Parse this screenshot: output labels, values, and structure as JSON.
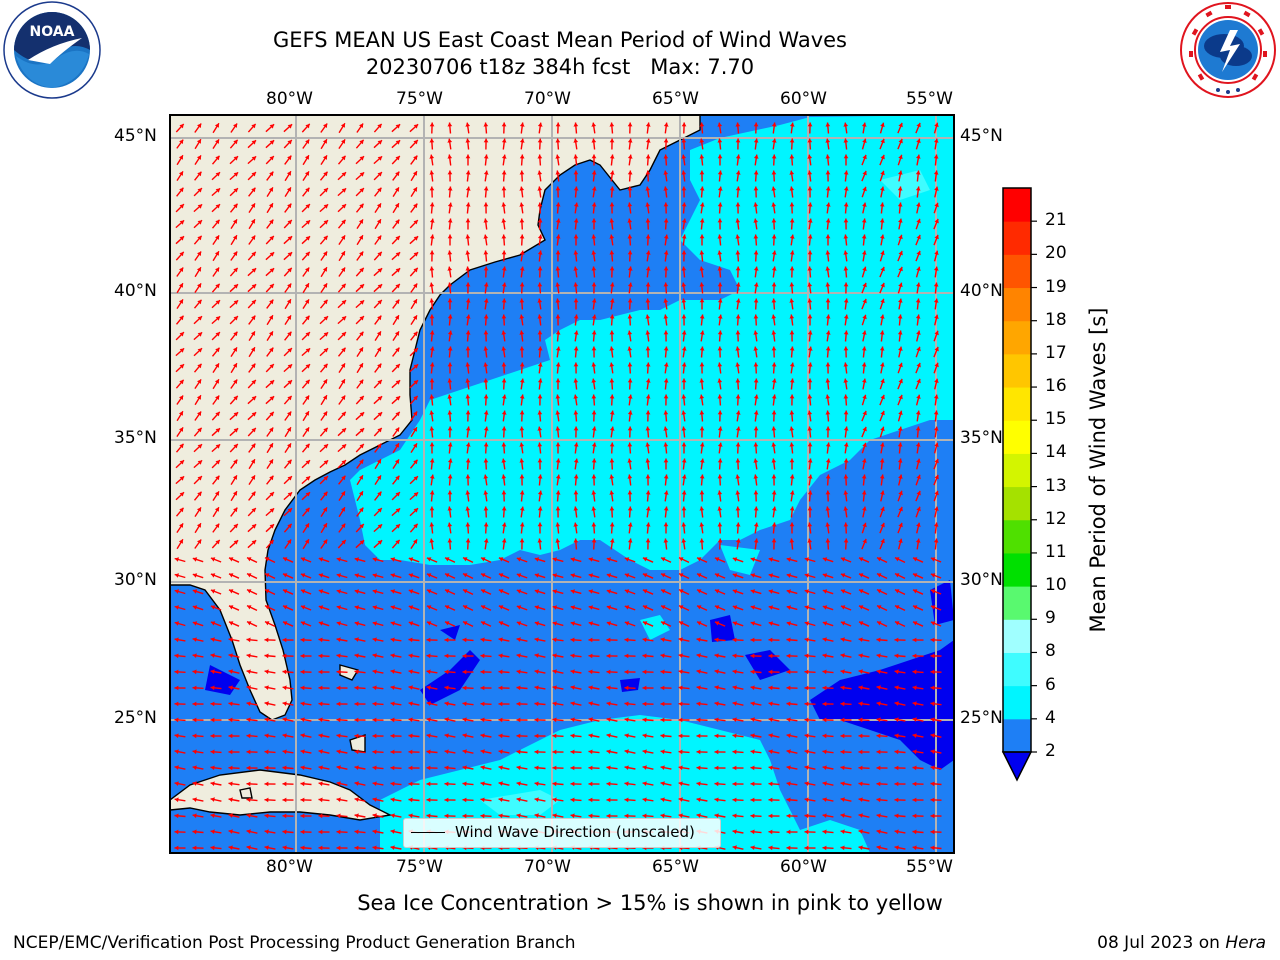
{
  "title": {
    "line1": "GEFS MEAN US East Coast Mean Period of Wind Waves",
    "line2": "20230706 t18z 384h fcst   Max: 7.70"
  },
  "logos": {
    "left": {
      "name": "NOAA",
      "text": "NOAA"
    },
    "right": {
      "name": "National Weather Service"
    }
  },
  "map": {
    "lon_labels": [
      "80°W",
      "75°W",
      "70°W",
      "65°W",
      "60°W",
      "55°W"
    ],
    "lat_labels": [
      "45°N",
      "40°N",
      "35°N",
      "30°N",
      "25°N"
    ],
    "legend_label": "Wind Wave Direction (unscaled)",
    "colors": {
      "land": "#efedde",
      "ocean_low": "#1e7ff5",
      "ocean_mid": "#00f5ff",
      "ocean_dark": "#0000ef",
      "arrow": "#ff0000",
      "grid": "#b3b3b3"
    }
  },
  "colorbar": {
    "ticks": [
      "2",
      "4",
      "6",
      "8",
      "9",
      "10",
      "11",
      "12",
      "13",
      "14",
      "15",
      "16",
      "17",
      "18",
      "19",
      "20",
      "21"
    ],
    "colors": [
      "#1e7ff5",
      "#00f5ff",
      "#3ffcff",
      "#a0ffff",
      "#59f96f",
      "#00e000",
      "#4fe000",
      "#a5e100",
      "#d3f500",
      "#ffff00",
      "#ffe600",
      "#ffc600",
      "#ffa600",
      "#ff8400",
      "#ff5500",
      "#ff2a00",
      "#ff0000"
    ],
    "under_color": "#0000ef",
    "label": "Mean Period of Wind Waves [s]"
  },
  "notes": {
    "sea_ice": "Sea Ice Concentration > 15% is shown in pink to yellow"
  },
  "footer": {
    "left": "NCEP/EMC/Verification Post Processing Product Generation Branch",
    "date": "08 Jul 2023 on ",
    "machine": "Hera"
  }
}
